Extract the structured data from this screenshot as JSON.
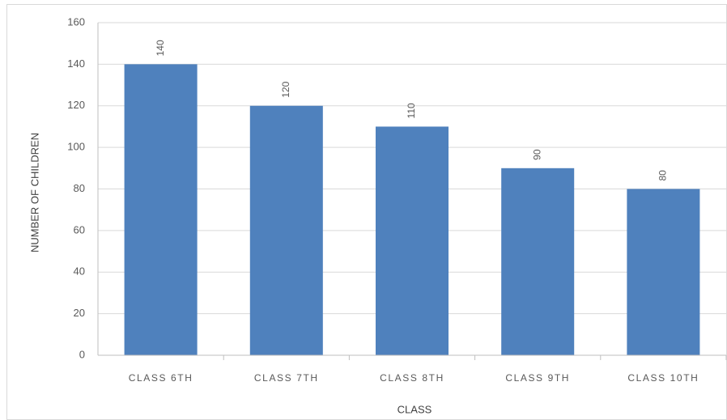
{
  "chart_data": {
    "type": "bar",
    "categories": [
      "CLASS 6TH",
      "CLASS 7TH",
      "CLASS 8TH",
      "CLASS 9TH",
      "CLASS 10TH"
    ],
    "values": [
      140,
      120,
      110,
      90,
      80
    ],
    "color": "#4f81bd",
    "xlabel": "CLASS",
    "ylabel": "NUMBER OF CHILDREN",
    "ylim": [
      0,
      160
    ],
    "yticks": [
      0,
      20,
      40,
      60,
      80,
      100,
      120,
      140,
      160
    ],
    "grid": true
  }
}
